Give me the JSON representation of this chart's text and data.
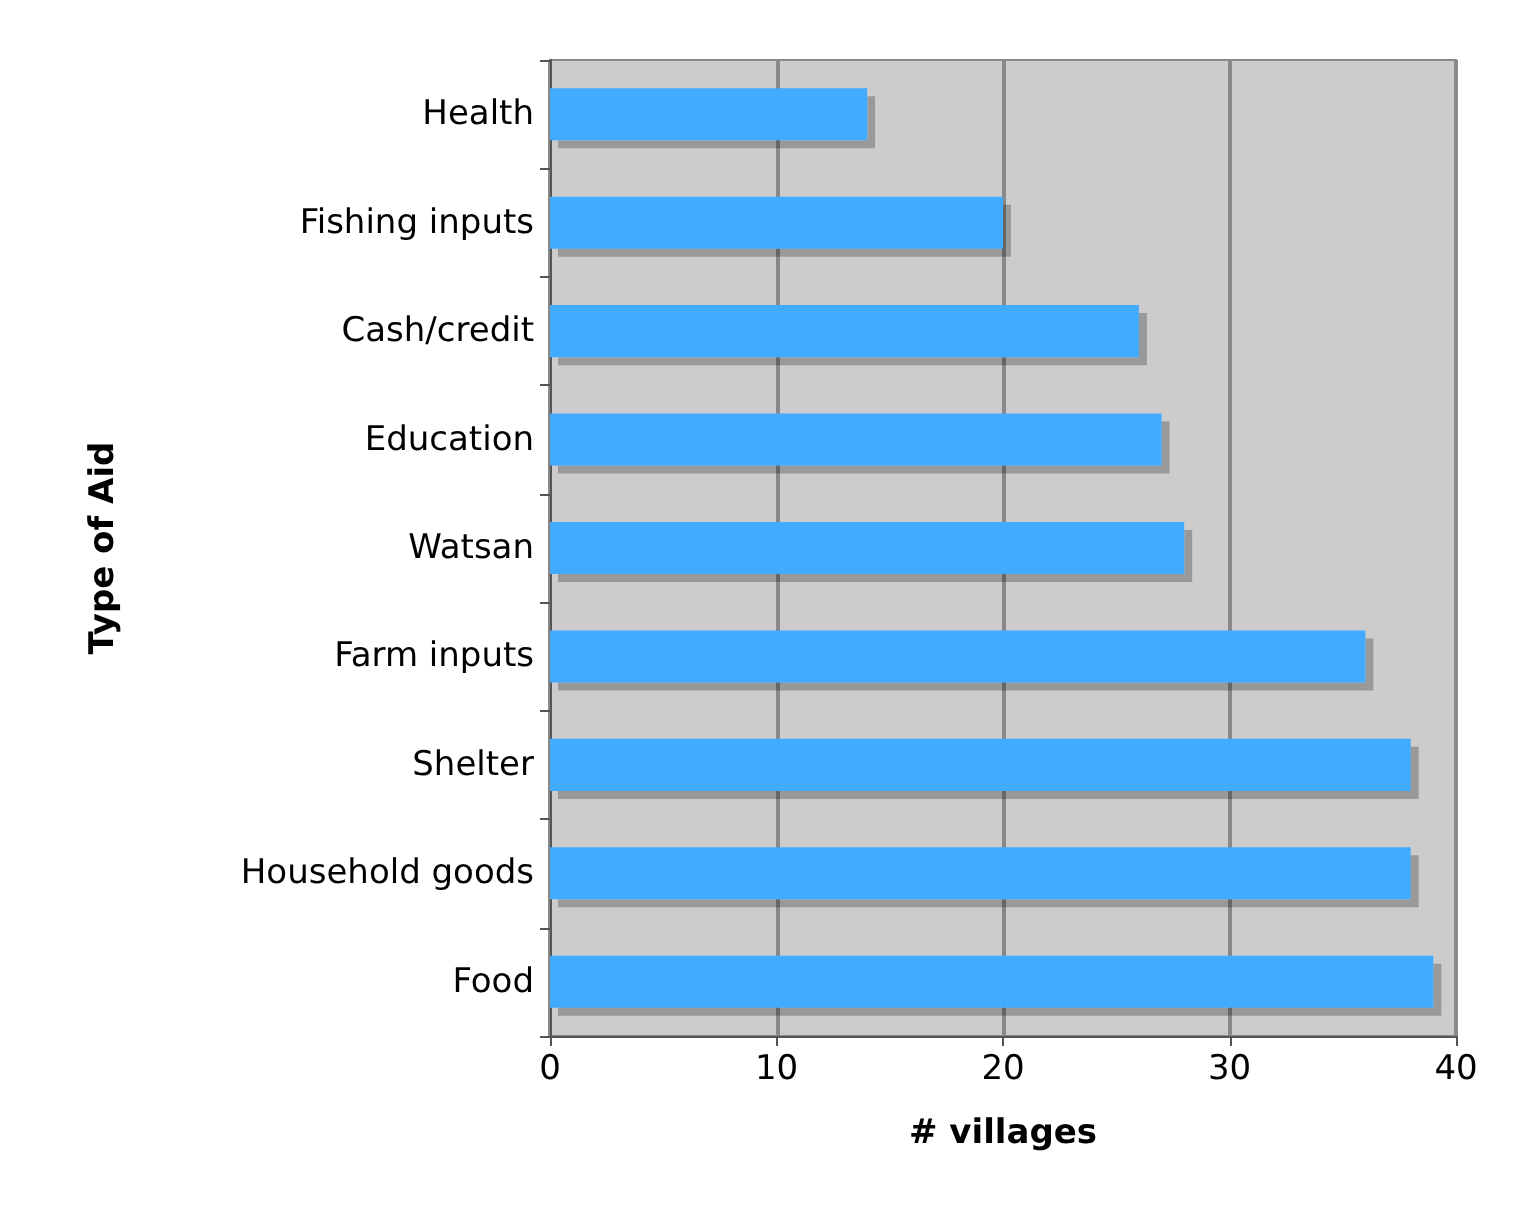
{
  "chart_data": {
    "type": "bar",
    "orientation": "horizontal",
    "xlabel": "# villages",
    "ylabel": "Type of Aid",
    "categories": [
      "Health",
      "Fishing inputs",
      "Cash/credit",
      "Education",
      "Watsan",
      "Farm inputs",
      "Shelter",
      "Household goods",
      "Food"
    ],
    "values": [
      14,
      20,
      26,
      27,
      28,
      36,
      38,
      38,
      39
    ],
    "color": "#42aaff",
    "xlim": [
      0,
      40
    ],
    "xticks": [
      0,
      10,
      20,
      30,
      40
    ],
    "grid": "x"
  }
}
